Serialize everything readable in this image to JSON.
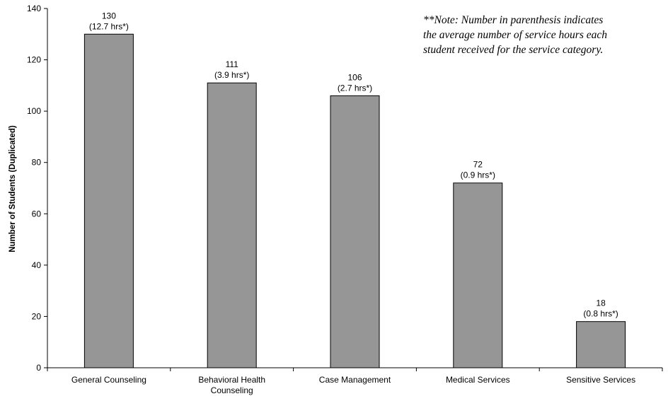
{
  "note": {
    "lines": [
      "**Note: Number in parenthesis indicates",
      "the average number of service hours each",
      "student received for the service category."
    ]
  },
  "chart_data": {
    "type": "bar",
    "categories": [
      [
        "General Counseling"
      ],
      [
        "Behavioral Health",
        "Counseling"
      ],
      [
        "Case Management"
      ],
      [
        "Medical Services"
      ],
      [
        "Sensitive Services"
      ]
    ],
    "values": [
      130,
      111,
      106,
      72,
      18
    ],
    "hours_labels": [
      "(12.7 hrs*)",
      "(3.9 hrs*)",
      "(2.7 hrs*)",
      "(0.9 hrs*)",
      "(0.8 hrs*)"
    ],
    "title": "",
    "xlabel": "",
    "ylabel": "Number of Students (Duplicated)",
    "ylim": [
      0,
      140
    ],
    "yticks": [
      0,
      20,
      40,
      60,
      80,
      100,
      120,
      140
    ],
    "bar_color": "#969696",
    "grid": false,
    "legend": "none"
  }
}
